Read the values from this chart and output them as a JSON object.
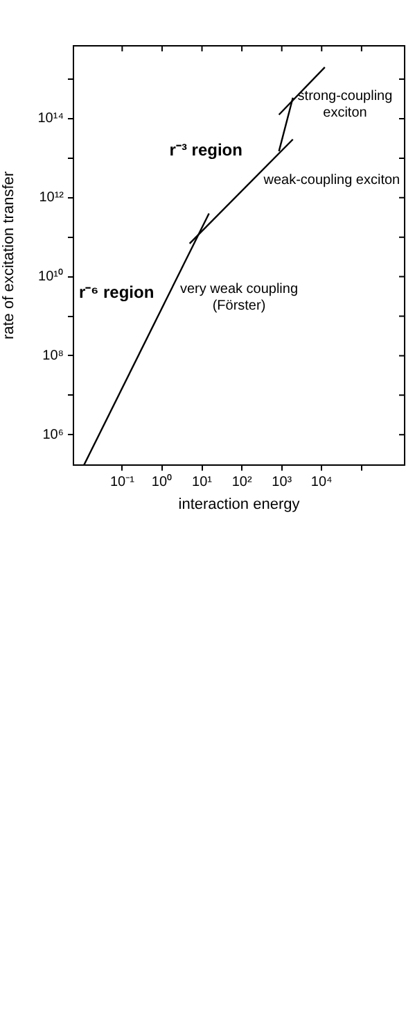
{
  "chart_data": {
    "type": "line",
    "xlabel": "interaction energy",
    "ylabel": "rate of excitation transfer",
    "log": "xy",
    "grid": false,
    "legend": false,
    "marker": "none",
    "line_style": "solid",
    "xlim": [
      0.006,
      1200000
    ],
    "ylim": [
      170000,
      7000000000000000
    ],
    "xticks": [
      {
        "value": 0.1,
        "label": "10⁻¹"
      },
      {
        "value": 1,
        "label": "10⁰"
      },
      {
        "value": 10,
        "label": "10¹"
      },
      {
        "value": 100,
        "label": "10²"
      },
      {
        "value": 1000,
        "label": "10³"
      },
      {
        "value": 10000,
        "label": "10⁴"
      },
      {
        "value": 100000,
        "label": null
      }
    ],
    "yticks": [
      {
        "value": 1000000,
        "label": "10⁶"
      },
      {
        "value": 10000000,
        "label": null
      },
      {
        "value": 100000000,
        "label": "10⁸"
      },
      {
        "value": 1000000000,
        "label": null
      },
      {
        "value": 10000000000,
        "label": "10¹⁰"
      },
      {
        "value": 100000000000,
        "label": null
      },
      {
        "value": 1000000000000,
        "label": "10¹²"
      },
      {
        "value": 10000000000000,
        "label": null
      },
      {
        "value": 100000000000000,
        "label": "10¹⁴"
      },
      {
        "value": 1000000000000000,
        "label": null
      }
    ],
    "series": [
      {
        "color": "#000000",
        "x": [
          0.011,
          15
        ],
        "values": [
          170000,
          400000000000
        ]
      },
      {
        "color": "#000000",
        "x": [
          4.9,
          1900
        ],
        "values": [
          69000000000,
          30000000000000
        ]
      },
      {
        "color": "#000000",
        "x": [
          850,
          1900
        ],
        "values": [
          15000000000000,
          340000000000000
        ]
      },
      {
        "color": "#000000",
        "x": [
          850,
          12000
        ],
        "values": [
          126000000000000,
          2000000000000000
        ]
      }
    ],
    "annotations": [
      "r⁻⁶ region",
      "r⁻³ region",
      "very weak coupling\n(Förster)",
      "weak-coupling exciton",
      "strong-coupling\nexciton"
    ]
  }
}
